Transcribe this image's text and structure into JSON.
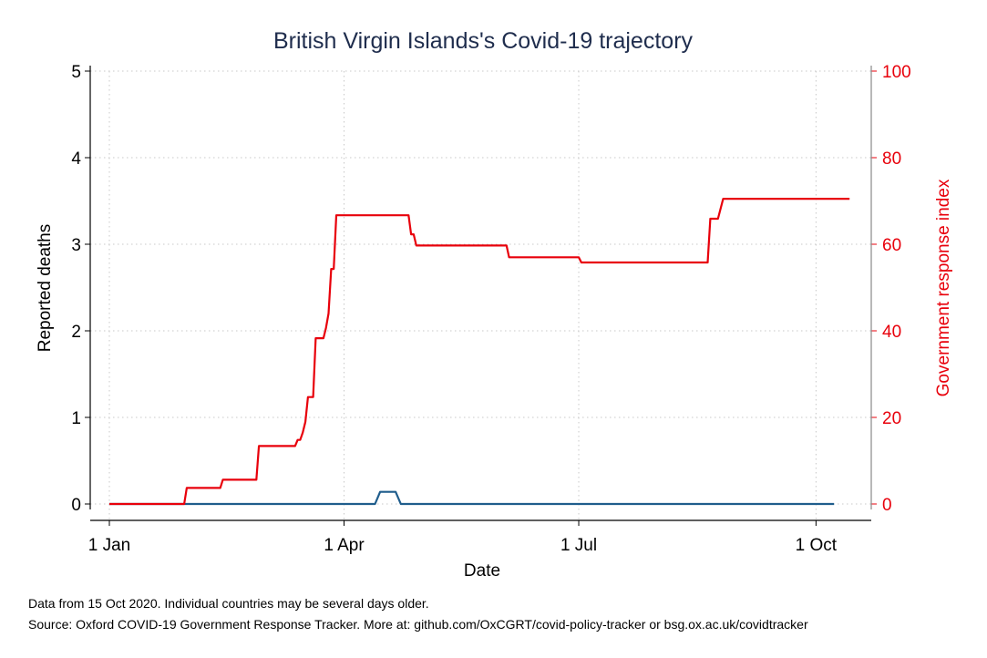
{
  "colors": {
    "deaths_line": "#1f5d8c",
    "response_line": "#e8000b",
    "grid": "#c8c8c8",
    "title": "#1f2d4d"
  },
  "chart_data": {
    "type": "line",
    "title": "British Virgin Islands's Covid-19 trajectory",
    "xlabel": "Date",
    "ylabel": "Reported deaths",
    "y2label": "Government response index",
    "x_domain": [
      "2020-01-01",
      "2020-10-15"
    ],
    "x_ticks": [
      {
        "date": "2020-01-01",
        "label": "1 Jan"
      },
      {
        "date": "2020-04-01",
        "label": "1 Apr"
      },
      {
        "date": "2020-07-01",
        "label": "1 Jul"
      },
      {
        "date": "2020-10-01",
        "label": "1 Oct"
      }
    ],
    "ylim": [
      0,
      5
    ],
    "y_ticks": [
      "0",
      "1",
      "2",
      "3",
      "4",
      "5"
    ],
    "y2lim": [
      0,
      100
    ],
    "y2_ticks": [
      "0",
      "20",
      "40",
      "60",
      "80",
      "100"
    ],
    "grid": true,
    "series": [
      {
        "name": "Reported deaths",
        "axis": "left",
        "color": "#1f5d8c",
        "points": [
          [
            "2020-01-01",
            0
          ],
          [
            "2020-04-13",
            0
          ],
          [
            "2020-04-15",
            0.14
          ],
          [
            "2020-04-21",
            0.14
          ],
          [
            "2020-04-23",
            0
          ],
          [
            "2020-10-08",
            0
          ]
        ]
      },
      {
        "name": "Government response index",
        "axis": "right",
        "color": "#e8000b",
        "points": [
          [
            "2020-01-01",
            0
          ],
          [
            "2020-01-30",
            0
          ],
          [
            "2020-01-31",
            3.7
          ],
          [
            "2020-02-13",
            3.7
          ],
          [
            "2020-02-14",
            5.6
          ],
          [
            "2020-02-27",
            5.6
          ],
          [
            "2020-02-28",
            13.4
          ],
          [
            "2020-03-13",
            13.4
          ],
          [
            "2020-03-14",
            14.8
          ],
          [
            "2020-03-15",
            14.8
          ],
          [
            "2020-03-16",
            16.5
          ],
          [
            "2020-03-17",
            19
          ],
          [
            "2020-03-18",
            24.7
          ],
          [
            "2020-03-20",
            24.7
          ],
          [
            "2020-03-21",
            38.3
          ],
          [
            "2020-03-24",
            38.3
          ],
          [
            "2020-03-25",
            40.7
          ],
          [
            "2020-03-26",
            44
          ],
          [
            "2020-03-27",
            54.3
          ],
          [
            "2020-03-28",
            54.3
          ],
          [
            "2020-03-29",
            66.7
          ],
          [
            "2020-04-26",
            66.7
          ],
          [
            "2020-04-27",
            62.3
          ],
          [
            "2020-04-28",
            62.3
          ],
          [
            "2020-04-29",
            59.7
          ],
          [
            "2020-06-03",
            59.7
          ],
          [
            "2020-06-04",
            57
          ],
          [
            "2020-07-01",
            57
          ],
          [
            "2020-07-02",
            55.8
          ],
          [
            "2020-08-20",
            55.8
          ],
          [
            "2020-08-21",
            65.9
          ],
          [
            "2020-08-24",
            65.9
          ],
          [
            "2020-08-26",
            70.5
          ],
          [
            "2020-10-14",
            70.5
          ]
        ]
      }
    ]
  },
  "footnotes": {
    "line1": "Data from 15 Oct 2020. Individual countries may be several days older.",
    "line2": "Source: Oxford COVID-19 Government Response Tracker. More at: github.com/OxCGRT/covid-policy-tracker or bsg.ox.ac.uk/covidtracker"
  }
}
